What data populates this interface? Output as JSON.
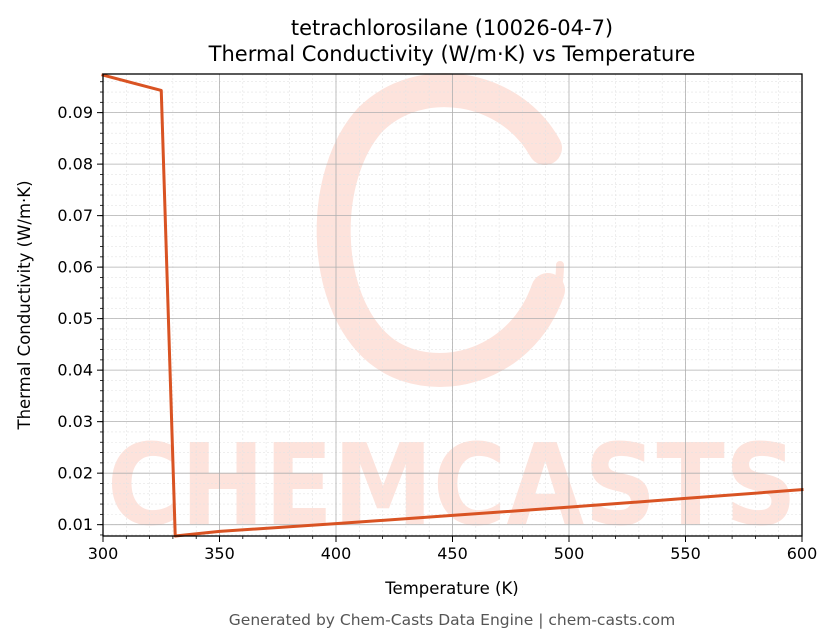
{
  "chart_data": {
    "type": "line",
    "title": "tetrachlorosilane (10026-04-7)",
    "subtitle": "Thermal Conductivity (W/m·K) vs Temperature",
    "xlabel": "Temperature (K)",
    "ylabel": "Thermal Conductivity (W/m·K)",
    "xlim": [
      300,
      600
    ],
    "ylim": [
      0.0078,
      0.0975
    ],
    "xticks": [
      300,
      350,
      400,
      450,
      500,
      550,
      600
    ],
    "yticks": [
      0.01,
      0.02,
      0.03,
      0.04,
      0.05,
      0.06,
      0.07,
      0.08,
      0.09
    ],
    "grid": true,
    "legend": "none",
    "series": [
      {
        "x": [
          300,
          325,
          331,
          350,
          400,
          450,
          500,
          550,
          600
        ],
        "y": [
          0.0973,
          0.0943,
          0.0078,
          0.0087,
          0.0102,
          0.0118,
          0.0134,
          0.0151,
          0.0168
        ]
      }
    ]
  },
  "colors": {
    "line": "#d95323",
    "watermark": "#fde3dc",
    "grid_major": "#b0b0b0",
    "grid_minor": "#e3e3e3"
  },
  "watermark": {
    "text": "CHEMCASTS",
    "icon": "chemcasts-logo-c"
  },
  "footer": {
    "text": "Generated by Chem-Casts Data Engine | chem-casts.com"
  }
}
